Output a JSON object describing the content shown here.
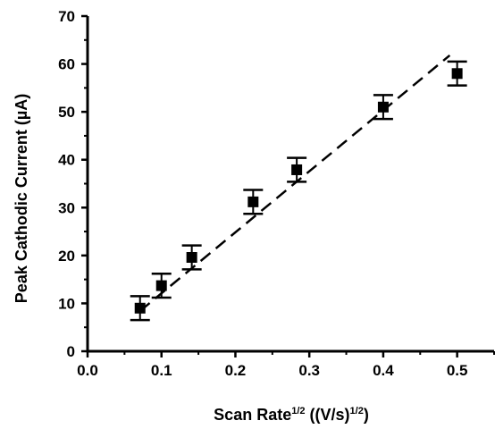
{
  "chart_data": {
    "type": "scatter",
    "title": "",
    "xlabel": {
      "prefix": "Scan Rate",
      "prefix_sup": "1/2",
      "units": " ((V/s)",
      "units_sup": "1/2",
      "suffix": ")"
    },
    "ylabel": "Peak Cathodic Current (µA)",
    "xlim": [
      0.0,
      0.55
    ],
    "ylim": [
      0,
      70
    ],
    "x_ticks": [
      "0.0",
      "0.1",
      "0.2",
      "0.3",
      "0.4",
      "0.5"
    ],
    "y_ticks": [
      "0",
      "10",
      "20",
      "30",
      "40",
      "50",
      "60",
      "70"
    ],
    "grid": false,
    "legend": "none",
    "series": [
      {
        "marker": "square",
        "color": "#000000",
        "x": [
          0.071,
          0.1,
          0.141,
          0.224,
          0.283,
          0.4,
          0.5
        ],
        "y": [
          9,
          13.7,
          19.6,
          31.2,
          37.9,
          51,
          58
        ],
        "error": [
          2.5,
          2.5,
          2.5,
          2.5,
          2.5,
          2.5,
          2.5
        ]
      }
    ],
    "fit_line": {
      "style": "dashed",
      "color": "#000000",
      "x": [
        0.071,
        0.49
      ],
      "y": [
        8.4,
        61.8
      ]
    }
  }
}
